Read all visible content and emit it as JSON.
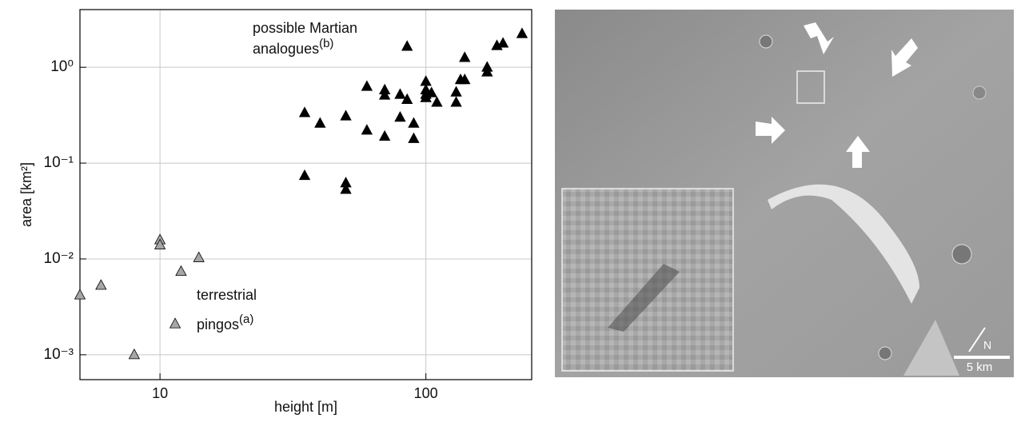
{
  "chart_data": {
    "type": "scatter",
    "x_label": "height [m]",
    "y_label": "area [km²]",
    "xscale": "log",
    "yscale": "log",
    "xlim": [
      5,
      250
    ],
    "ylim": [
      0.00055,
      4
    ],
    "xticks": [
      10,
      100
    ],
    "yticks": [
      {
        "value": 0.001,
        "label": "10⁻³"
      },
      {
        "value": 0.01,
        "label": "10⁻²"
      },
      {
        "value": 0.1,
        "label": "10⁻¹"
      },
      {
        "value": 1,
        "label": "10⁰"
      }
    ],
    "grid": true,
    "annotations": [
      {
        "lines": [
          "possible Martian",
          "analogues"
        ],
        "sup": "(b)"
      },
      {
        "lines": [
          "terrestrial",
          "pingos"
        ],
        "sup": "(a)"
      }
    ],
    "series": [
      {
        "color": "#a6a6a6",
        "x": [
          5,
          6,
          8,
          10,
          10,
          12,
          11.4,
          14
        ],
        "values": [
          0.0042,
          0.0053,
          0.001,
          0.0158,
          0.014,
          0.0074,
          0.0021,
          0.0103
        ]
      },
      {
        "color": "#000000",
        "x": [
          35,
          35,
          40,
          50,
          50,
          50,
          60,
          60,
          70,
          70,
          70,
          80,
          80,
          85,
          85,
          90,
          90,
          100,
          100,
          100,
          100,
          105,
          110,
          130,
          130,
          135,
          140,
          140,
          170,
          170,
          185,
          195,
          230
        ],
        "values": [
          0.335,
          0.074,
          0.26,
          0.31,
          0.062,
          0.053,
          0.63,
          0.22,
          0.58,
          0.51,
          0.19,
          0.52,
          0.3,
          0.46,
          1.65,
          0.26,
          0.18,
          0.71,
          0.58,
          0.48,
          0.52,
          0.54,
          0.43,
          0.55,
          0.43,
          0.74,
          0.74,
          1.26,
          1.0,
          0.89,
          1.68,
          1.78,
          2.24
        ]
      }
    ]
  },
  "image": {
    "north": "N",
    "scale": "5 km"
  }
}
